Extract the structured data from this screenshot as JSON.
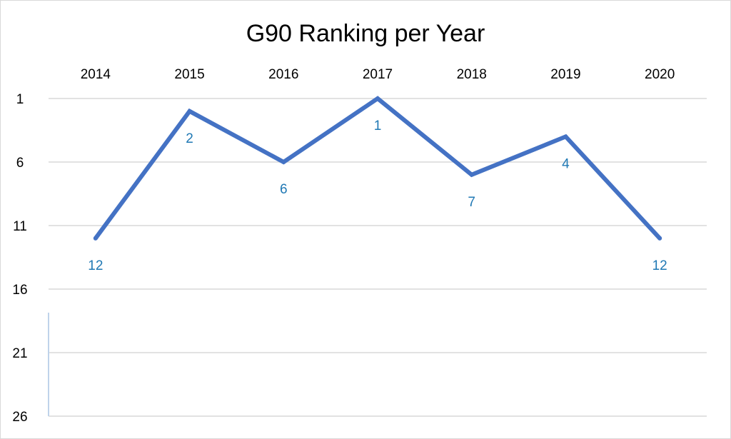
{
  "chart_data": {
    "type": "line",
    "title": "G90 Ranking per Year",
    "xlabel": "",
    "ylabel": "",
    "categories": [
      "2014",
      "2015",
      "2016",
      "2017",
      "2018",
      "2019",
      "2020"
    ],
    "series": [
      {
        "values": [
          12,
          2,
          6,
          1,
          7,
          4,
          12
        ],
        "data_labels": [
          "12",
          "2",
          "6",
          "1",
          "7",
          "4",
          "12"
        ]
      }
    ],
    "y_axis": {
      "reversed": true,
      "range": [
        1,
        26
      ],
      "ticks": [
        "1",
        "6",
        "11",
        "16",
        "21",
        "26"
      ]
    },
    "x_axis_position": "top",
    "grid": true,
    "legend": "none",
    "colors": {
      "series": "#4472c4",
      "data_label": "#1f78b4",
      "grid": "#d9d9d9"
    }
  }
}
